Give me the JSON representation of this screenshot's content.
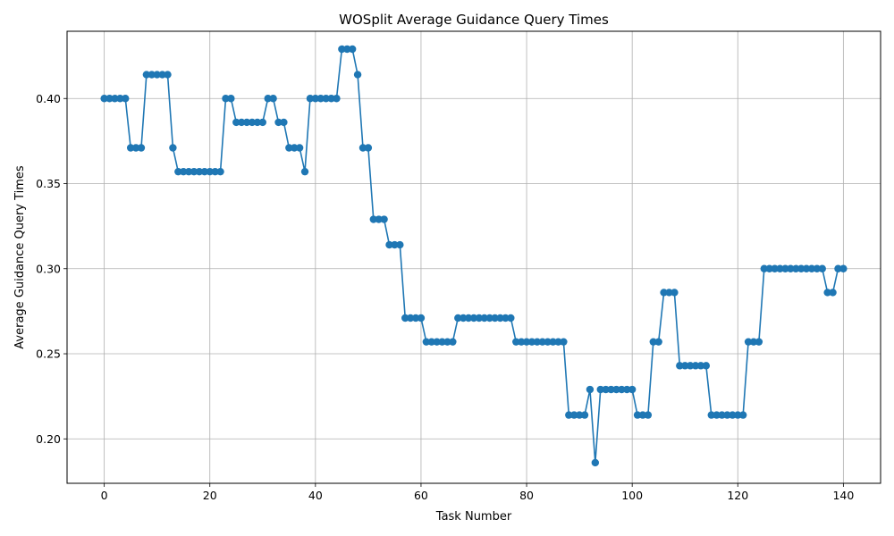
{
  "chart_data": {
    "type": "line",
    "title": "WOSplit Average Guidance Query Times",
    "xlabel": "Task Number",
    "ylabel": "Average Guidance Query Times",
    "xlim": [
      -7.05,
      147.05
    ],
    "ylim": [
      0.1739,
      0.4395
    ],
    "xticks": [
      0,
      20,
      40,
      60,
      80,
      100,
      120,
      140
    ],
    "yticks": [
      0.2,
      0.25,
      0.3,
      0.35,
      0.4
    ],
    "ytick_labels": [
      "0.20",
      "0.25",
      "0.30",
      "0.35",
      "0.40"
    ],
    "grid": true,
    "color": "#1f77b4",
    "series": [
      {
        "marker": "circle",
        "x": [
          0,
          1,
          2,
          3,
          4,
          5,
          6,
          7,
          8,
          9,
          10,
          11,
          12,
          13,
          14,
          15,
          16,
          17,
          18,
          19,
          20,
          21,
          22,
          23,
          24,
          25,
          26,
          27,
          28,
          29,
          30,
          31,
          32,
          33,
          34,
          35,
          36,
          37,
          38,
          39,
          40,
          41,
          42,
          43,
          44,
          45,
          46,
          47,
          48,
          49,
          50,
          51,
          52,
          53,
          54,
          55,
          56,
          57,
          58,
          59,
          60,
          61,
          62,
          63,
          64,
          65,
          66,
          67,
          68,
          69,
          70,
          71,
          72,
          73,
          74,
          75,
          76,
          77,
          78,
          79,
          80,
          81,
          82,
          83,
          84,
          85,
          86,
          87,
          88,
          89,
          90,
          91,
          92,
          93,
          94,
          95,
          96,
          97,
          98,
          99,
          100,
          101,
          102,
          103,
          104,
          105,
          106,
          107,
          108,
          109,
          110,
          111,
          112,
          113,
          114,
          115,
          116,
          117,
          118,
          119,
          120,
          121,
          122,
          123,
          124,
          125,
          126,
          127,
          128,
          129,
          130,
          131,
          132,
          133,
          134,
          135,
          136,
          137,
          138,
          139,
          140
        ],
        "y": [
          0.4,
          0.4,
          0.4,
          0.4,
          0.4,
          0.371,
          0.371,
          0.371,
          0.414,
          0.414,
          0.414,
          0.414,
          0.414,
          0.371,
          0.357,
          0.357,
          0.357,
          0.357,
          0.357,
          0.357,
          0.357,
          0.357,
          0.357,
          0.4,
          0.4,
          0.386,
          0.386,
          0.386,
          0.386,
          0.386,
          0.386,
          0.4,
          0.4,
          0.386,
          0.386,
          0.371,
          0.371,
          0.371,
          0.357,
          0.4,
          0.4,
          0.4,
          0.4,
          0.4,
          0.4,
          0.429,
          0.429,
          0.429,
          0.414,
          0.371,
          0.371,
          0.329,
          0.329,
          0.329,
          0.314,
          0.314,
          0.314,
          0.271,
          0.271,
          0.271,
          0.271,
          0.257,
          0.257,
          0.257,
          0.257,
          0.257,
          0.257,
          0.271,
          0.271,
          0.271,
          0.271,
          0.271,
          0.271,
          0.271,
          0.271,
          0.271,
          0.271,
          0.271,
          0.257,
          0.257,
          0.257,
          0.257,
          0.257,
          0.257,
          0.257,
          0.257,
          0.257,
          0.257,
          0.214,
          0.214,
          0.214,
          0.214,
          0.229,
          0.186,
          0.229,
          0.229,
          0.229,
          0.229,
          0.229,
          0.229,
          0.229,
          0.214,
          0.214,
          0.214,
          0.257,
          0.257,
          0.286,
          0.286,
          0.286,
          0.243,
          0.243,
          0.243,
          0.243,
          0.243,
          0.243,
          0.214,
          0.214,
          0.214,
          0.214,
          0.214,
          0.214,
          0.214,
          0.257,
          0.257,
          0.257,
          0.3,
          0.3,
          0.3,
          0.3,
          0.3,
          0.3,
          0.3,
          0.3,
          0.3,
          0.3,
          0.3,
          0.3,
          0.286,
          0.286,
          0.3,
          0.3
        ]
      }
    ]
  }
}
